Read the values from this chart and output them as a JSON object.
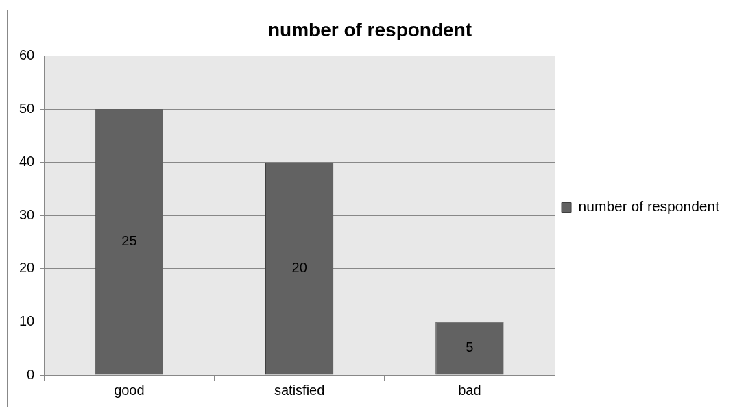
{
  "chart_data": {
    "type": "bar",
    "title": "number of respondent",
    "categories": [
      "good",
      "satisfied",
      "bad"
    ],
    "series": [
      {
        "name": "number of respondent",
        "color": "#626262",
        "values": [
          50,
          40,
          10
        ]
      }
    ],
    "annotations": [
      "25",
      "20",
      "5"
    ],
    "ylim": [
      0,
      60
    ],
    "yticks": [
      0,
      10,
      20,
      30,
      40,
      50,
      60
    ],
    "grid": "y",
    "legend": "right"
  }
}
